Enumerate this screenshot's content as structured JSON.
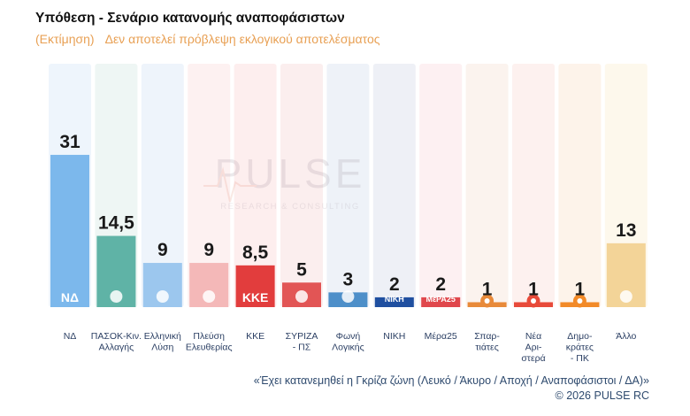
{
  "header": {
    "title": "Υπόθεση - Σενάριο κατανομής αναποφάσιστων",
    "subtitle_a": "(Εκτίμηση)",
    "subtitle_b": "Δεν αποτελεί πρόβλεψη εκλογικού αποτελέσματος"
  },
  "watermark": {
    "name": "PULSE",
    "tagline": "RESEARCH & CONSULTING"
  },
  "chart_data": {
    "type": "bar",
    "title": "Υπόθεση - Σενάριο κατανομής αναποφάσιστων",
    "xlabel": "",
    "ylabel": "",
    "ylim": [
      0,
      35
    ],
    "categories": [
      [
        "ΝΔ"
      ],
      [
        "ΠΑΣΟΚ-Κιν.",
        "Αλλαγής"
      ],
      [
        "Ελληνική",
        "Λύση"
      ],
      [
        "Πλεύση",
        "Ελευθερίας"
      ],
      [
        "ΚΚΕ"
      ],
      [
        "ΣΥΡΙΖΑ",
        "- ΠΣ"
      ],
      [
        "Φωνή",
        "Λογικής"
      ],
      [
        "ΝΙΚΗ"
      ],
      [
        "Μέρα25"
      ],
      [
        "Σπαρ-",
        "τιάτες"
      ],
      [
        "Νέα",
        "Αρι-",
        "στερά"
      ],
      [
        "Δημο-",
        "κράτες",
        "- ΠΚ"
      ],
      [
        "Άλλο"
      ]
    ],
    "values": [
      31,
      14.5,
      9,
      9,
      8.5,
      5,
      3,
      2,
      2,
      1,
      1,
      1,
      13
    ],
    "value_labels": [
      "31",
      "14,5",
      "9",
      "9",
      "8,5",
      "5",
      "3",
      "2",
      "2",
      "1",
      "1",
      "1",
      "13"
    ],
    "logos": [
      "ΝΔ",
      "",
      "",
      "",
      "ΚΚΕ",
      "",
      "",
      "ΝΙΚΗ",
      "ΜέΡΑ25",
      "",
      "",
      "",
      ""
    ],
    "colors": [
      "#7cb8ec",
      "#5fb3a6",
      "#9cc7ee",
      "#f4b8b8",
      "#e23d3d",
      "#e25555",
      "#4d8fc9",
      "#1f4fa0",
      "#e0474c",
      "#e88a3a",
      "#e84a3a",
      "#f28a28",
      "#f3d498"
    ],
    "bg_colors": [
      "#eef5fc",
      "#eef6f4",
      "#eef4fb",
      "#fdf1f1",
      "#fdeeee",
      "#fbeeee",
      "#eef2f8",
      "#eef0f6",
      "#fdf0f2",
      "#fbf3ee",
      "#fdf1ef",
      "#fdf3ea",
      "#fdf8ec"
    ]
  },
  "footer": {
    "note": "«Έχει κατανεμηθεί η Γκρίζα ζώνη (Λευκό / Άκυρο / Αποχή / Αναποφάσιστοι / ΔΑ)»",
    "copyright": "©  2026  PULSE RC"
  }
}
